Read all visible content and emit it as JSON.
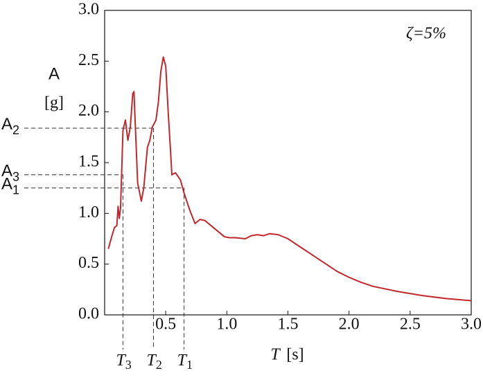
{
  "chart_data": {
    "type": "line",
    "annotation": "ζ=5%",
    "y_label": {
      "name": "A",
      "unit": "[g]"
    },
    "x_label": {
      "symbol": "T",
      "unit": "[s]"
    },
    "x": [
      0.03,
      0.06,
      0.08,
      0.1,
      0.11,
      0.12,
      0.13,
      0.15,
      0.17,
      0.19,
      0.21,
      0.23,
      0.24,
      0.25,
      0.27,
      0.3,
      0.32,
      0.35,
      0.37,
      0.39,
      0.42,
      0.44,
      0.46,
      0.48,
      0.5,
      0.52,
      0.54,
      0.55,
      0.58,
      0.62,
      0.65,
      0.7,
      0.74,
      0.78,
      0.82,
      0.9,
      0.98,
      1.02,
      1.07,
      1.15,
      1.2,
      1.25,
      1.3,
      1.35,
      1.42,
      1.5,
      1.6,
      1.7,
      1.8,
      1.9,
      2.0,
      2.1,
      2.2,
      2.4,
      2.6,
      2.8,
      3.0
    ],
    "series": [
      {
        "color": "#c1272d",
        "values": [
          0.65,
          0.78,
          0.86,
          0.88,
          1.07,
          0.95,
          1.05,
          1.82,
          1.92,
          1.72,
          1.85,
          2.18,
          2.2,
          1.9,
          1.3,
          1.12,
          1.25,
          1.65,
          1.72,
          1.85,
          1.92,
          2.1,
          2.4,
          2.54,
          2.45,
          2.0,
          1.6,
          1.38,
          1.4,
          1.33,
          1.2,
          1.02,
          0.9,
          0.94,
          0.93,
          0.85,
          0.77,
          0.76,
          0.76,
          0.75,
          0.78,
          0.79,
          0.78,
          0.8,
          0.79,
          0.75,
          0.67,
          0.59,
          0.51,
          0.43,
          0.37,
          0.32,
          0.28,
          0.23,
          0.19,
          0.16,
          0.14
        ]
      }
    ],
    "xlim": [
      0,
      3.0
    ],
    "ylim": [
      0,
      3.0
    ],
    "xticks": [
      {
        "value": 0.5,
        "label": "0.5"
      },
      {
        "value": 1,
        "label": "1.0"
      },
      {
        "value": 1.5,
        "label": "1.5"
      },
      {
        "value": 2,
        "label": "2.0"
      },
      {
        "value": 2.5,
        "label": "2.5"
      },
      {
        "value": 3,
        "label": "3.0"
      }
    ],
    "yticks": [
      {
        "value": 0,
        "label": "0.0"
      },
      {
        "value": 0.5,
        "label": "0.5"
      },
      {
        "value": 1,
        "label": "1.0"
      },
      {
        "value": 1.5,
        "label": "1.5"
      },
      {
        "value": 2,
        "label": "2.0"
      },
      {
        "value": 2.5,
        "label": "2.5"
      },
      {
        "value": 3,
        "label": "3.0"
      }
    ],
    "a_markers": [
      {
        "label": "A",
        "sub": "1",
        "value": 1.25
      },
      {
        "label": "A",
        "sub": "2",
        "value": 1.84
      },
      {
        "label": "A",
        "sub": "3",
        "value": 1.38
      }
    ],
    "t_markers": [
      {
        "label": "T",
        "sub": "1",
        "value": 0.65
      },
      {
        "label": "T",
        "sub": "2",
        "value": 0.4
      },
      {
        "label": "T",
        "sub": "3",
        "value": 0.15
      }
    ]
  }
}
